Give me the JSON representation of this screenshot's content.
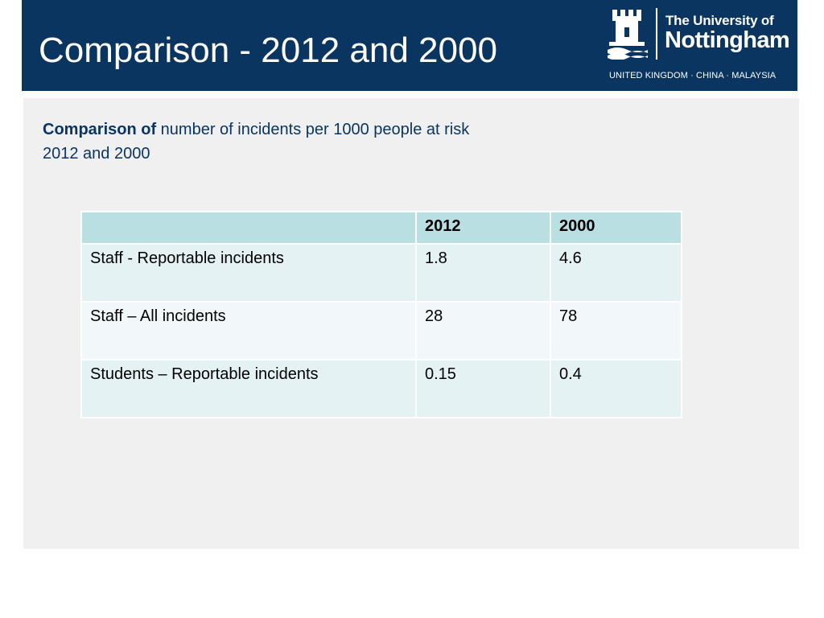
{
  "slide": {
    "title": "Comparison - 2012 and 2000"
  },
  "logo": {
    "line1": "The University of",
    "line2": "Nottingham",
    "tagline": "UNITED KINGDOM · CHINA · MALAYSIA",
    "icon": "castle-crest-icon",
    "color": "#ffffff"
  },
  "subtitle": {
    "lead": "Comparison of",
    "rest": " number of incidents per 1000 people at risk",
    "line2": "2012 and 2000"
  },
  "table": {
    "headers": [
      "",
      "2012",
      "2000"
    ],
    "rows": [
      [
        "Staff - Reportable incidents",
        "1.8",
        "4.6"
      ],
      [
        "Staff – All incidents",
        "28",
        "78"
      ],
      [
        "Students – Reportable incidents",
        "0.15",
        "0.4"
      ]
    ]
  },
  "colors": {
    "header_bar": "#0b3561",
    "panel": "#f0f0f0",
    "table_header": "#b9dfe3",
    "row_a": "#e5f2f4",
    "row_b": "#f2f8f9",
    "subtitle_text": "#0b3561"
  }
}
